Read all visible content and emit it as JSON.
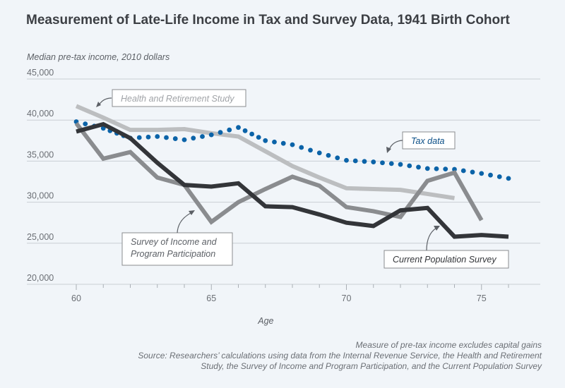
{
  "chart_data": {
    "type": "line",
    "title": "Measurement of Late-Life Income in Tax and Survey Data, 1941 Birth Cohort",
    "ylabel": "Median pre-tax income, 2010 dollars",
    "xlabel": "Age",
    "xlim": [
      60,
      76
    ],
    "ylim": [
      20000,
      45000
    ],
    "xticks": [
      60,
      65,
      70,
      75
    ],
    "xticks_minor": [
      60,
      61,
      62,
      63,
      64,
      65,
      66,
      67,
      68,
      69,
      70,
      71,
      72,
      73,
      74,
      75,
      76
    ],
    "yticks": [
      20000,
      25000,
      30000,
      35000,
      40000,
      45000
    ],
    "ytick_labels": [
      "20,000",
      "25,000",
      "30,000",
      "35,000",
      "40,000",
      "45,000"
    ],
    "grid": true,
    "series": [
      {
        "name": "Health and Retirement Study",
        "color": "#bcbec0",
        "style": "solid",
        "x": [
          60,
          61,
          62,
          63,
          64,
          65,
          66,
          67,
          68,
          69,
          70,
          71,
          72,
          73,
          74
        ],
        "values": [
          41700,
          40300,
          38800,
          38800,
          38900,
          38400,
          38000,
          36200,
          34400,
          33000,
          31700,
          31600,
          31500,
          31000,
          30500
        ]
      },
      {
        "name": "Tax data",
        "color": "#0b63a8",
        "style": "dotted",
        "x": [
          60,
          61,
          62,
          63,
          64,
          65,
          66,
          67,
          68,
          69,
          70,
          71,
          72,
          73,
          74,
          75,
          76
        ],
        "values": [
          39800,
          39000,
          37800,
          38000,
          37600,
          38200,
          39100,
          37500,
          37000,
          36000,
          35100,
          34900,
          34600,
          34100,
          34000,
          33500,
          32900
        ]
      },
      {
        "name": "Survey of Income and Program Participation",
        "color": "#8a8c8f",
        "style": "solid",
        "x": [
          60,
          61,
          62,
          63,
          64,
          65,
          66,
          67,
          68,
          69,
          70,
          71,
          72,
          73,
          74,
          75
        ],
        "values": [
          39600,
          35300,
          36100,
          33000,
          32100,
          27600,
          30000,
          31600,
          33100,
          32000,
          29400,
          28900,
          28200,
          32600,
          33600,
          27800
        ]
      },
      {
        "name": "Current Population Survey",
        "color": "#333539",
        "style": "solid",
        "x": [
          60,
          61,
          62,
          63,
          64,
          65,
          66,
          67,
          68,
          69,
          70,
          71,
          72,
          73,
          74,
          75,
          76
        ],
        "values": [
          38600,
          39500,
          37800,
          34800,
          32100,
          31900,
          32300,
          29500,
          29400,
          28500,
          27500,
          27100,
          29000,
          29300,
          25800,
          26000,
          25800
        ]
      }
    ],
    "annotations": [
      {
        "text": "Health and Retirement Study",
        "series": "Health and Retirement Study"
      },
      {
        "text": "Tax data",
        "series": "Tax data"
      },
      {
        "text": "Survey of Income and Program Participation",
        "lines": [
          "Survey of Income and",
          "Program Participation"
        ],
        "series": "Survey of Income and Program Participation"
      },
      {
        "text": "Current Population Survey",
        "series": "Current Population Survey"
      }
    ],
    "legend": "inline-annotations"
  },
  "footer": {
    "note": "Measure of pre-tax income excludes capital gains",
    "source_line1": "Source: Researchers’ calculations using data from the Internal Revenue Service, the Health and Retirement",
    "source_line2": "Study, the Survey of Income and Program Participation, and the Current Population Survey"
  }
}
